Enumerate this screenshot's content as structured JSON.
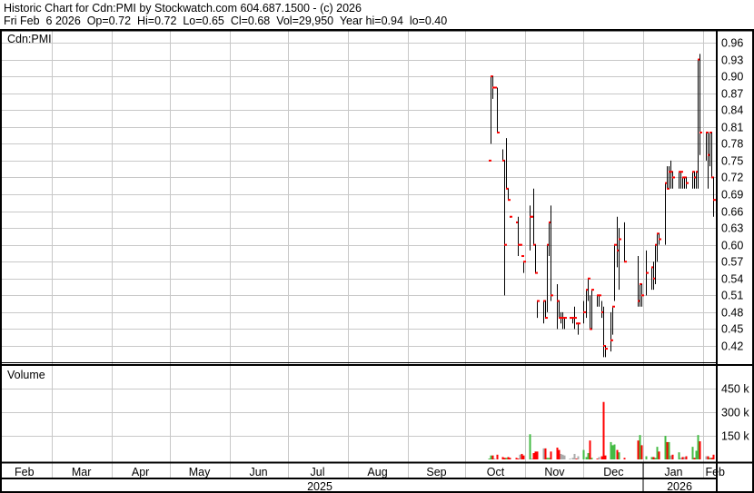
{
  "header": {
    "title": "Historic Chart for Cdn:PMI by Stockwatch.com 604.687.1500 - (c) 2026",
    "quote_line": "Fri Feb  6 2026  Op=0.72  Hi=0.72  Lo=0.65  Cl=0.68  Vol=29,950  Year hi=0.94  lo=0.40"
  },
  "colors": {
    "up": "#44bb44",
    "down": "#ff0000",
    "unchanged": "#aaaaaa",
    "close_tick": "#ff0000",
    "bar": "#000000",
    "grid": "#c8c8c8"
  },
  "chart_data": {
    "type": "ohlc-bar-with-volume",
    "symbol_label": "Cdn:PMI",
    "volume_label": "Volume",
    "price_ticks": [
      "0.42",
      "0.45",
      "0.48",
      "0.51",
      "0.54",
      "0.57",
      "0.60",
      "0.63",
      "0.66",
      "0.69",
      "0.72",
      "0.75",
      "0.78",
      "0.81",
      "0.84",
      "0.87",
      "0.90",
      "0.93",
      "0.96"
    ],
    "price_range": [
      0.39,
      0.97
    ],
    "volume_ticks": [
      {
        "value": 150,
        "label": "150 k"
      },
      {
        "value": 300,
        "label": "300 k"
      },
      {
        "value": 450,
        "label": "450 k"
      }
    ],
    "months": [
      {
        "label": "Feb",
        "y": 2025,
        "m": 2
      },
      {
        "label": "Mar",
        "y": 2025,
        "m": 3
      },
      {
        "label": "Apr",
        "y": 2025,
        "m": 4
      },
      {
        "label": "May",
        "y": 2025,
        "m": 5
      },
      {
        "label": "Jun",
        "y": 2025,
        "m": 6
      },
      {
        "label": "Jul",
        "y": 2025,
        "m": 7
      },
      {
        "label": "Aug",
        "y": 2025,
        "m": 8
      },
      {
        "label": "Sep",
        "y": 2025,
        "m": 9
      },
      {
        "label": "Oct",
        "y": 2025,
        "m": 10
      },
      {
        "label": "Nov",
        "y": 2025,
        "m": 11
      },
      {
        "label": "Dec",
        "y": 2025,
        "m": 12
      },
      {
        "label": "Jan",
        "y": 2026,
        "m": 1
      },
      {
        "label": "Feb",
        "y": 2026,
        "m": 2
      }
    ],
    "years": [
      "2025",
      "2026"
    ],
    "grid": true,
    "bars_fields": [
      "date",
      "high",
      "low",
      "close",
      "volume_k"
    ],
    "bars": [
      [
        "2025-10-13",
        0.75,
        0.75,
        0.75,
        5
      ],
      [
        "2025-10-14",
        0.9,
        0.78,
        0.9,
        25
      ],
      [
        "2025-10-15",
        0.9,
        0.86,
        0.88,
        25
      ],
      [
        "2025-10-16",
        0.88,
        0.88,
        0.88,
        5
      ],
      [
        "2025-10-17",
        0.88,
        0.8,
        0.8,
        30
      ],
      [
        "2025-10-20",
        0.77,
        0.75,
        0.75,
        15
      ],
      [
        "2025-10-21",
        0.75,
        0.51,
        0.6,
        10
      ],
      [
        "2025-10-22",
        0.79,
        0.7,
        0.7,
        10
      ],
      [
        "2025-10-23",
        0.7,
        0.68,
        0.68,
        15
      ],
      [
        "2025-10-24",
        0.65,
        0.65,
        0.65,
        10
      ],
      [
        "2025-10-27",
        0.64,
        0.64,
        0.64,
        10
      ],
      [
        "2025-10-28",
        0.65,
        0.58,
        0.6,
        5
      ],
      [
        "2025-10-29",
        0.6,
        0.6,
        0.6,
        30
      ],
      [
        "2025-10-30",
        0.58,
        0.58,
        0.58,
        35
      ],
      [
        "2025-10-31",
        0.57,
        0.55,
        0.57,
        25
      ],
      [
        "2025-11-03",
        0.67,
        0.59,
        0.65,
        160
      ],
      [
        "2025-11-04",
        0.65,
        0.65,
        0.65,
        5
      ],
      [
        "2025-11-05",
        0.7,
        0.6,
        0.6,
        40
      ],
      [
        "2025-11-06",
        0.6,
        0.55,
        0.55,
        50
      ],
      [
        "2025-11-07",
        0.5,
        0.47,
        0.5,
        50
      ],
      [
        "2025-11-10",
        0.5,
        0.46,
        0.5,
        70
      ],
      [
        "2025-11-11",
        0.5,
        0.47,
        0.47,
        70
      ],
      [
        "2025-11-12",
        0.6,
        0.48,
        0.6,
        10
      ],
      [
        "2025-11-13",
        0.64,
        0.58,
        0.64,
        10
      ],
      [
        "2025-11-14",
        0.67,
        0.5,
        0.51,
        50
      ],
      [
        "2025-11-17",
        0.53,
        0.45,
        0.5,
        75
      ],
      [
        "2025-11-18",
        0.5,
        0.47,
        0.47,
        60
      ],
      [
        "2025-11-19",
        0.48,
        0.46,
        0.47,
        35
      ],
      [
        "2025-11-20",
        0.48,
        0.45,
        0.47,
        30
      ],
      [
        "2025-11-21",
        0.47,
        0.45,
        0.47,
        25
      ],
      [
        "2025-11-24",
        0.47,
        0.47,
        0.47,
        5
      ],
      [
        "2025-11-25",
        0.47,
        0.46,
        0.47,
        10
      ],
      [
        "2025-11-26",
        0.49,
        0.45,
        0.47,
        35
      ],
      [
        "2025-11-27",
        0.46,
        0.46,
        0.46,
        5
      ],
      [
        "2025-11-28",
        0.46,
        0.44,
        0.46,
        20
      ],
      [
        "2025-12-01",
        0.5,
        0.46,
        0.48,
        60
      ],
      [
        "2025-12-02",
        0.52,
        0.47,
        0.52,
        15
      ],
      [
        "2025-12-03",
        0.54,
        0.5,
        0.54,
        40
      ],
      [
        "2025-12-04",
        0.51,
        0.45,
        0.45,
        120
      ],
      [
        "2025-12-05",
        0.52,
        0.45,
        0.52,
        10
      ],
      [
        "2025-12-08",
        0.51,
        0.49,
        0.51,
        5
      ],
      [
        "2025-12-09",
        0.51,
        0.49,
        0.51,
        15
      ],
      [
        "2025-12-10",
        0.5,
        0.47,
        0.48,
        20
      ],
      [
        "2025-12-11",
        0.49,
        0.4,
        0.42,
        365
      ],
      [
        "2025-12-12",
        0.42,
        0.4,
        0.415,
        25
      ],
      [
        "2025-12-15",
        0.48,
        0.41,
        0.43,
        110
      ],
      [
        "2025-12-16",
        0.49,
        0.44,
        0.49,
        90
      ],
      [
        "2025-12-17",
        0.6,
        0.5,
        0.6,
        95
      ],
      [
        "2025-12-18",
        0.65,
        0.56,
        0.59,
        60
      ],
      [
        "2025-12-19",
        0.63,
        0.52,
        0.61,
        45
      ],
      [
        "2025-12-22",
        0.64,
        0.57,
        0.57,
        10
      ],
      [
        "2025-12-29",
        0.58,
        0.49,
        0.5,
        120
      ],
      [
        "2025-12-30",
        0.53,
        0.49,
        0.53,
        155
      ],
      [
        "2025-12-31",
        0.53,
        0.49,
        0.51,
        90
      ],
      [
        "2026-01-02",
        0.59,
        0.51,
        0.55,
        20
      ],
      [
        "2026-01-05",
        0.56,
        0.52,
        0.56,
        15
      ],
      [
        "2026-01-06",
        0.57,
        0.52,
        0.54,
        15
      ],
      [
        "2026-01-07",
        0.6,
        0.53,
        0.6,
        10
      ],
      [
        "2026-01-08",
        0.62,
        0.57,
        0.62,
        80
      ],
      [
        "2026-01-09",
        0.62,
        0.6,
        0.61,
        50
      ],
      [
        "2026-01-12",
        0.71,
        0.6,
        0.71,
        150
      ],
      [
        "2026-01-13",
        0.74,
        0.7,
        0.7,
        110
      ],
      [
        "2026-01-14",
        0.74,
        0.7,
        0.73,
        110
      ],
      [
        "2026-01-15",
        0.75,
        0.7,
        0.73,
        25
      ],
      [
        "2026-01-16",
        0.73,
        0.7,
        0.72,
        30
      ],
      [
        "2026-01-19",
        0.73,
        0.7,
        0.73,
        45
      ],
      [
        "2026-01-20",
        0.73,
        0.7,
        0.73,
        10
      ],
      [
        "2026-01-21",
        0.72,
        0.7,
        0.72,
        15
      ],
      [
        "2026-01-22",
        0.72,
        0.7,
        0.72,
        15
      ],
      [
        "2026-01-23",
        0.72,
        0.7,
        0.71,
        20
      ],
      [
        "2026-01-26",
        0.73,
        0.7,
        0.73,
        80
      ],
      [
        "2026-01-27",
        0.73,
        0.7,
        0.72,
        10
      ],
      [
        "2026-01-28",
        0.73,
        0.7,
        0.73,
        55
      ],
      [
        "2026-01-29",
        0.93,
        0.7,
        0.93,
        155
      ],
      [
        "2026-01-30",
        0.94,
        0.76,
        0.8,
        115
      ],
      [
        "2026-02-02",
        0.8,
        0.75,
        0.8,
        20
      ],
      [
        "2026-02-03",
        0.8,
        0.7,
        0.76,
        20
      ],
      [
        "2026-02-04",
        0.8,
        0.74,
        0.8,
        10
      ],
      [
        "2026-02-05",
        0.8,
        0.72,
        0.72,
        10
      ],
      [
        "2026-02-06",
        0.72,
        0.65,
        0.68,
        30
      ]
    ]
  }
}
